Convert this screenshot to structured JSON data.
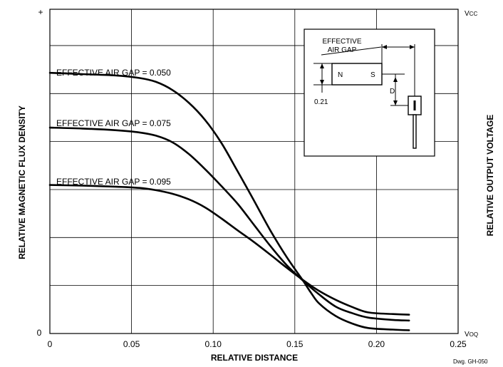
{
  "chart_data": {
    "type": "line",
    "xlabel": "RELATIVE DISTANCE",
    "ylabel_left": "RELATIVE MAGNETIC FLUX DENSITY",
    "ylabel_right": "RELATIVE OUTPUT VOLTAGE",
    "y_top_label": "+",
    "y_bottom_label": "0",
    "vcc_label": "VCC",
    "voq_label": "VOQ",
    "xlim": [
      0,
      0.25
    ],
    "ylim": [
      0,
      1
    ],
    "x_ticks": [
      "0",
      "0.05",
      "0.10",
      "0.15",
      "0.20",
      "0.25"
    ],
    "x_tick_values": [
      0,
      0.05,
      0.1,
      0.15,
      0.2,
      0.25
    ],
    "y_grid_values": [
      0.148,
      0.296,
      0.444,
      0.592,
      0.74,
      0.888
    ],
    "grid": true,
    "series": [
      {
        "name": "EFFECTIVE AIR GAP = 0.050",
        "x": [
          0,
          0.02,
          0.04,
          0.055,
          0.065,
          0.075,
          0.085,
          0.095,
          0.105,
          0.115,
          0.125,
          0.135,
          0.145,
          0.155,
          0.16,
          0.165,
          0.175,
          0.185,
          0.195,
          0.21,
          0.22
        ],
        "y": [
          0.804,
          0.8,
          0.796,
          0.788,
          0.776,
          0.751,
          0.712,
          0.659,
          0.588,
          0.5,
          0.41,
          0.318,
          0.236,
          0.163,
          0.125,
          0.092,
          0.054,
          0.031,
          0.017,
          0.012,
          0.01
        ]
      },
      {
        "name": "EFFECTIVE AIR GAP = 0.075",
        "x": [
          0,
          0.02,
          0.04,
          0.055,
          0.065,
          0.075,
          0.085,
          0.095,
          0.105,
          0.115,
          0.125,
          0.135,
          0.145,
          0.155,
          0.165,
          0.175,
          0.185,
          0.195,
          0.21,
          0.22
        ],
        "y": [
          0.635,
          0.632,
          0.627,
          0.62,
          0.61,
          0.59,
          0.554,
          0.507,
          0.455,
          0.4,
          0.335,
          0.27,
          0.211,
          0.163,
          0.12,
          0.083,
          0.063,
          0.049,
          0.042,
          0.04
        ]
      },
      {
        "name": "EFFECTIVE AIR GAP = 0.095",
        "x": [
          0,
          0.02,
          0.04,
          0.055,
          0.065,
          0.075,
          0.085,
          0.095,
          0.105,
          0.115,
          0.125,
          0.135,
          0.145,
          0.155,
          0.165,
          0.175,
          0.185,
          0.195,
          0.21,
          0.22
        ],
        "y": [
          0.458,
          0.456,
          0.453,
          0.449,
          0.442,
          0.431,
          0.414,
          0.389,
          0.355,
          0.318,
          0.282,
          0.243,
          0.203,
          0.165,
          0.131,
          0.104,
          0.082,
          0.065,
          0.06,
          0.058
        ]
      }
    ]
  },
  "inset": {
    "effective_air_gap_label_line1": "EFFECTIVE",
    "effective_air_gap_label_line2": "AIR GAP",
    "magnet_n": "N",
    "magnet_s": "S",
    "d_label": "D",
    "thickness_label": "0.21"
  },
  "drawing_number": "Dwg. GH-050"
}
